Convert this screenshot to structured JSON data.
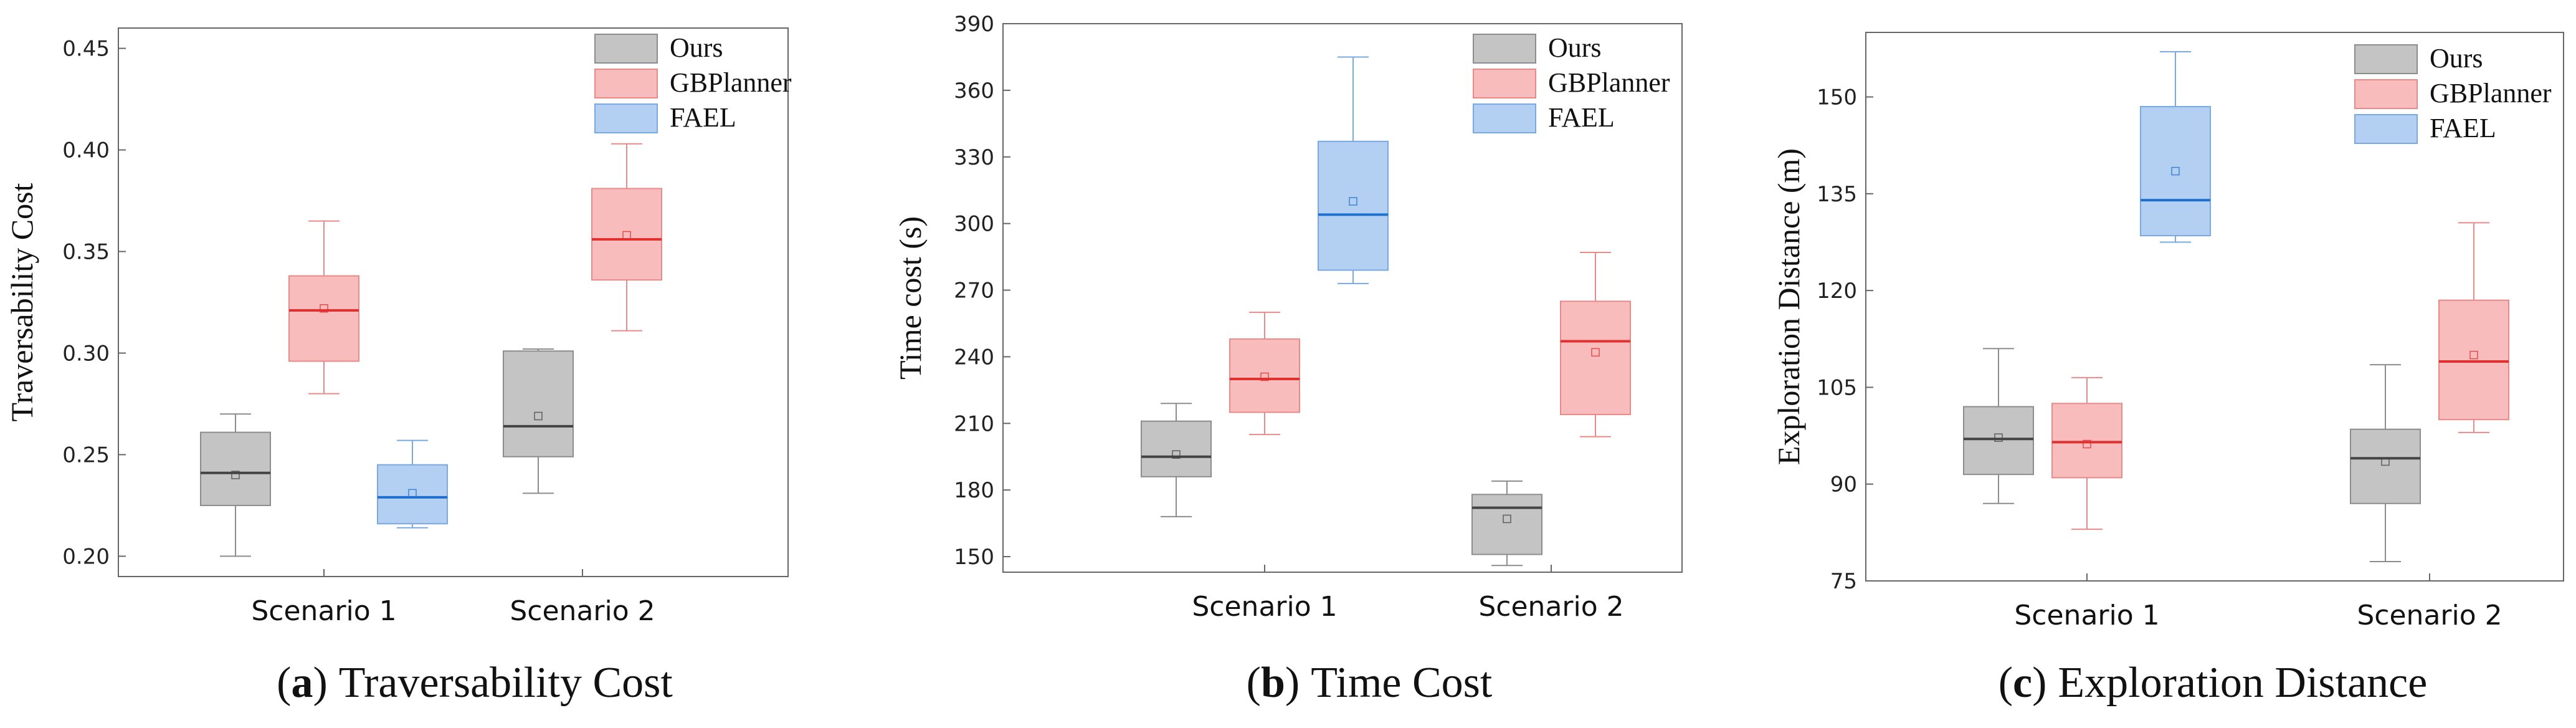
{
  "chart_data": [
    {
      "type": "box",
      "caption": {
        "open": "(",
        "letter": "a",
        "close": ")",
        "title": "Traversability Cost"
      },
      "ylabel": "Traversability Cost",
      "xlabel": "",
      "ylim": [
        0.19,
        0.46
      ],
      "yticks": [
        0.2,
        0.25,
        0.3,
        0.35,
        0.4,
        0.45
      ],
      "ytick_labels": [
        "0.20",
        "0.25",
        "0.30",
        "0.35",
        "0.40",
        "0.45"
      ],
      "categories": [
        "Scenario 1",
        "Scenario 2"
      ],
      "legend_position": "top-right",
      "series": [
        {
          "name": "Ours",
          "fill": "#c4c4c4",
          "stroke": "#8c8c8c",
          "median_color": "#444444",
          "boxes": [
            {
              "category": "Scenario 1",
              "min": 0.2,
              "q1": 0.225,
              "median": 0.241,
              "mean": 0.24,
              "q3": 0.261,
              "max": 0.27
            },
            {
              "category": "Scenario 2",
              "min": 0.231,
              "q1": 0.249,
              "median": 0.264,
              "mean": 0.269,
              "q3": 0.301,
              "max": 0.302
            }
          ]
        },
        {
          "name": "GBPlanner",
          "fill": "#f8bcbc",
          "stroke": "#e88a8a",
          "median_color": "#e03030",
          "boxes": [
            {
              "category": "Scenario 1",
              "min": 0.28,
              "q1": 0.296,
              "median": 0.321,
              "mean": 0.322,
              "q3": 0.338,
              "max": 0.365
            },
            {
              "category": "Scenario 2",
              "min": 0.311,
              "q1": 0.336,
              "median": 0.356,
              "mean": 0.358,
              "q3": 0.381,
              "max": 0.403
            }
          ]
        },
        {
          "name": "FAEL",
          "fill": "#b3cff2",
          "stroke": "#7aa8e0",
          "median_color": "#1f6fd0",
          "boxes": [
            {
              "category": "Scenario 1",
              "min": 0.214,
              "q1": 0.216,
              "median": 0.229,
              "mean": 0.231,
              "q3": 0.245,
              "max": 0.257
            }
          ]
        }
      ]
    },
    {
      "type": "box",
      "caption": {
        "open": "(",
        "letter": "b",
        "close": ")",
        "title": "Time Cost"
      },
      "ylabel": "Time cost (s)",
      "xlabel": "",
      "ylim": [
        143,
        390
      ],
      "yticks": [
        150,
        180,
        210,
        240,
        270,
        300,
        330,
        360,
        390
      ],
      "ytick_labels": [
        "150",
        "180",
        "210",
        "240",
        "270",
        "300",
        "330",
        "360",
        "390"
      ],
      "categories": [
        "Scenario 1",
        "Scenario 2"
      ],
      "legend_position": "top-right",
      "series": [
        {
          "name": "Ours",
          "fill": "#c4c4c4",
          "stroke": "#8c8c8c",
          "median_color": "#444444",
          "boxes": [
            {
              "category": "Scenario 1",
              "min": 168,
              "q1": 186,
              "median": 195,
              "mean": 196,
              "q3": 211,
              "max": 219
            },
            {
              "category": "Scenario 2",
              "min": 146,
              "q1": 151,
              "median": 172,
              "mean": 167,
              "q3": 178,
              "max": 184
            }
          ]
        },
        {
          "name": "GBPlanner",
          "fill": "#f8bcbc",
          "stroke": "#e88a8a",
          "median_color": "#e03030",
          "boxes": [
            {
              "category": "Scenario 1",
              "min": 205,
              "q1": 215,
              "median": 230,
              "mean": 231,
              "q3": 248,
              "max": 260
            },
            {
              "category": "Scenario 2",
              "min": 204,
              "q1": 214,
              "median": 247,
              "mean": 242,
              "q3": 265,
              "max": 287
            }
          ]
        },
        {
          "name": "FAEL",
          "fill": "#b3cff2",
          "stroke": "#7aa8e0",
          "median_color": "#1f6fd0",
          "boxes": [
            {
              "category": "Scenario 1",
              "min": 273,
              "q1": 279,
              "median": 304,
              "mean": 310,
              "q3": 337,
              "max": 375
            }
          ]
        }
      ]
    },
    {
      "type": "box",
      "caption": {
        "open": "(",
        "letter": "c",
        "close": ")",
        "title": "Exploration Distance"
      },
      "ylabel": "Exploration Distance (m)",
      "xlabel": "",
      "ylim": [
        75,
        160
      ],
      "yticks": [
        75,
        90,
        105,
        120,
        135,
        150
      ],
      "ytick_labels": [
        "75",
        "90",
        "105",
        "120",
        "135",
        "150"
      ],
      "categories": [
        "Scenario 1",
        "Scenario 2"
      ],
      "legend_position": "top-right",
      "series": [
        {
          "name": "Ours",
          "fill": "#c4c4c4",
          "stroke": "#8c8c8c",
          "median_color": "#444444",
          "boxes": [
            {
              "category": "Scenario 1",
              "min": 87,
              "q1": 91.5,
              "median": 97,
              "mean": 97.2,
              "q3": 102,
              "max": 111
            },
            {
              "category": "Scenario 2",
              "min": 78,
              "q1": 87,
              "median": 94,
              "mean": 93.5,
              "q3": 98.5,
              "max": 108.5
            }
          ]
        },
        {
          "name": "GBPlanner",
          "fill": "#f8bcbc",
          "stroke": "#e88a8a",
          "median_color": "#e03030",
          "boxes": [
            {
              "category": "Scenario 1",
              "min": 83,
              "q1": 91,
              "median": 96.5,
              "mean": 96.2,
              "q3": 102.5,
              "max": 106.5
            },
            {
              "category": "Scenario 2",
              "min": 98,
              "q1": 100,
              "median": 109,
              "mean": 110,
              "q3": 118.5,
              "max": 130.5
            }
          ]
        },
        {
          "name": "FAEL",
          "fill": "#b3cff2",
          "stroke": "#7aa8e0",
          "median_color": "#1f6fd0",
          "boxes": [
            {
              "category": "Scenario 1",
              "min": 127.5,
              "q1": 128.5,
              "median": 134,
              "mean": 138.5,
              "q3": 148.5,
              "max": 157
            }
          ]
        }
      ]
    }
  ]
}
